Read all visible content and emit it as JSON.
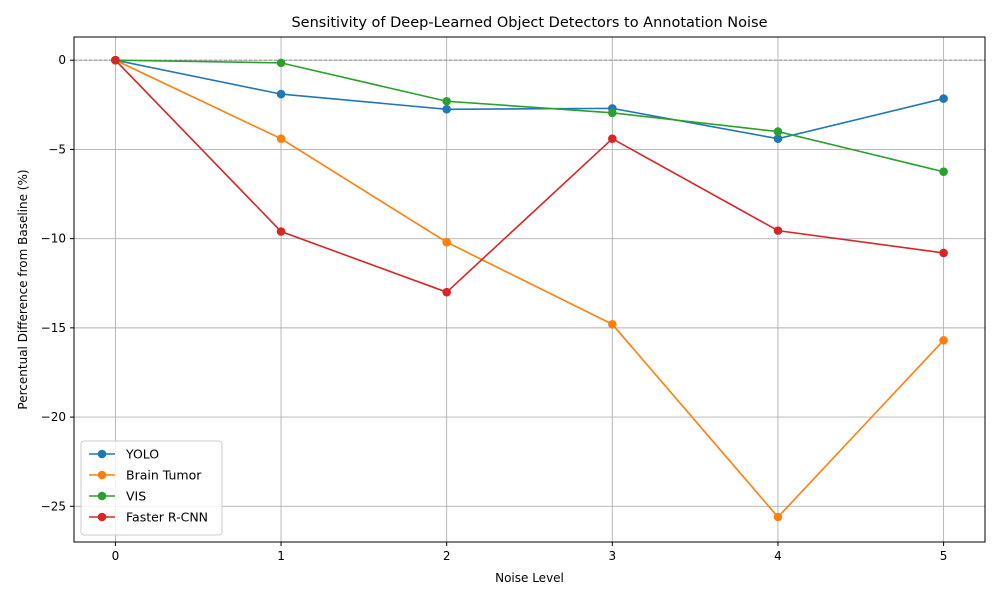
{
  "chart_data": {
    "type": "line",
    "title": "Sensitivity of Deep-Learned Object Detectors to Annotation Noise",
    "xlabel": "Noise Level",
    "ylabel": "Percentual Difference from Baseline (%)",
    "x": [
      0,
      1,
      2,
      3,
      4,
      5
    ],
    "xlim": [
      -0.25,
      5.25
    ],
    "ylim": [
      -27.0,
      1.3
    ],
    "xticks": [
      0,
      1,
      2,
      3,
      4,
      5
    ],
    "yticks": [
      0,
      -5,
      -10,
      -15,
      -20,
      -25
    ],
    "grid": true,
    "baseline": 0,
    "legend_position": "lower-left",
    "series": [
      {
        "name": "YOLO",
        "color": "#1f77b4",
        "values": [
          0,
          -1.9,
          -2.75,
          -2.7,
          -4.4,
          -2.15
        ]
      },
      {
        "name": "Brain Tumor",
        "color": "#ff7f0e",
        "values": [
          0,
          -4.4,
          -10.2,
          -14.8,
          -25.6,
          -15.7
        ]
      },
      {
        "name": "VIS",
        "color": "#2ca02c",
        "values": [
          0,
          -0.15,
          -2.3,
          -2.95,
          -4.0,
          -6.25
        ]
      },
      {
        "name": "Faster R-CNN",
        "color": "#d62728",
        "values": [
          0,
          -9.6,
          -13.0,
          -4.4,
          -9.55,
          -10.8
        ]
      }
    ]
  }
}
